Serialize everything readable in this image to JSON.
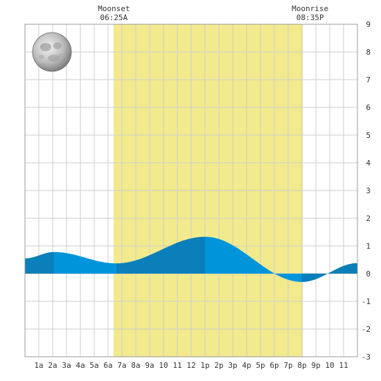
{
  "chart_data": {
    "type": "area",
    "title": "",
    "xlabel": "",
    "ylabel": "",
    "xlim": [
      0,
      24
    ],
    "ylim": [
      -3,
      9
    ],
    "grid": true,
    "hour_labels": [
      "1a",
      "2a",
      "3a",
      "4a",
      "5a",
      "6a",
      "7a",
      "8a",
      "9a",
      "10",
      "11",
      "12",
      "1p",
      "2p",
      "3p",
      "4p",
      "5p",
      "6p",
      "7p",
      "8p",
      "9p",
      "10",
      "11"
    ],
    "y_ticks": [
      -3,
      -2,
      -1,
      0,
      1,
      2,
      3,
      4,
      5,
      6,
      7,
      8,
      9
    ],
    "daylight": {
      "start": 6.4,
      "end": 20.05,
      "color": "#f2ea8c"
    },
    "moon": {
      "phase": "full",
      "moonset": {
        "label": "Moonset",
        "time": "06:25A",
        "x": 6.42
      },
      "moonrise": {
        "label": "Moonrise",
        "time": "08:35P",
        "x": 20.58
      }
    },
    "tide_extremes": [
      {
        "x": 0,
        "y": 0.55
      },
      {
        "x": 2.1,
        "y": 0.78
      },
      {
        "x": 6.6,
        "y": 0.37
      },
      {
        "x": 13.0,
        "y": 1.33
      },
      {
        "x": 20.0,
        "y": -0.3
      },
      {
        "x": 24,
        "y": 0.38
      }
    ],
    "band_boundaries": [
      0,
      2.1,
      6.6,
      13.0,
      20.0,
      24
    ],
    "colors": {
      "dark_blue": "#0a7fb9",
      "light_blue": "#0095db",
      "grid": "#cccccc",
      "frame": "#999999"
    }
  }
}
